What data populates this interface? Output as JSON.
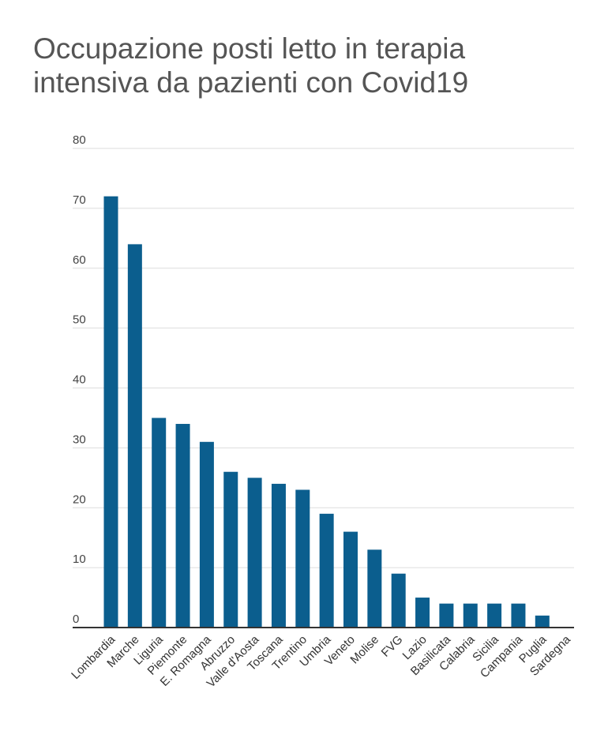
{
  "title_lines": [
    "Occupazione posti letto in terapia",
    "intensiva da pazienti con Covid19"
  ],
  "colors": {
    "bar": "#0b5e8e",
    "grid": "#dddddd",
    "axis": "#333333",
    "title": "#555555"
  },
  "chart_data": {
    "type": "bar",
    "title": "Occupazione posti letto in terapia intensiva da pazienti con Covid19",
    "xlabel": "",
    "ylabel": "",
    "ylim": [
      0,
      80
    ],
    "yticks": [
      0,
      10,
      20,
      30,
      40,
      50,
      60,
      70,
      80
    ],
    "grid": true,
    "categories": [
      "Lombardia",
      "Marche",
      "Liguria",
      "Piemonte",
      "E. Romagna",
      "Abruzzo",
      "Valle d'Aosta",
      "Toscana",
      "Trentino",
      "Umbria",
      "Veneto",
      "Molise",
      "FVG",
      "Lazio",
      "Basilicata",
      "Calabria",
      "Sicilia",
      "Campania",
      "Puglia",
      "Sardegna"
    ],
    "values": [
      72,
      64,
      35,
      34,
      31,
      26,
      25,
      24,
      23,
      19,
      16,
      13,
      9,
      5,
      4,
      4,
      4,
      4,
      2,
      0
    ]
  }
}
